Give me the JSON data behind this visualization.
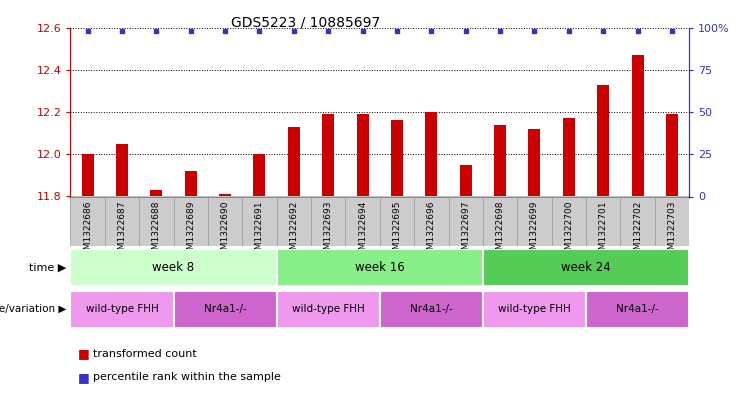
{
  "title": "GDS5223 / 10885697",
  "samples": [
    "GSM1322686",
    "GSM1322687",
    "GSM1322688",
    "GSM1322689",
    "GSM1322690",
    "GSM1322691",
    "GSM1322692",
    "GSM1322693",
    "GSM1322694",
    "GSM1322695",
    "GSM1322696",
    "GSM1322697",
    "GSM1322698",
    "GSM1322699",
    "GSM1322700",
    "GSM1322701",
    "GSM1322702",
    "GSM1322703"
  ],
  "transformed_count": [
    12.0,
    12.05,
    11.83,
    11.92,
    11.81,
    12.0,
    12.13,
    12.19,
    12.19,
    12.16,
    12.2,
    11.95,
    12.14,
    12.12,
    12.17,
    12.33,
    12.47,
    12.19
  ],
  "bar_color": "#cc0000",
  "dot_color": "#3333cc",
  "ylim_left": [
    11.8,
    12.6
  ],
  "ylim_right": [
    0,
    100
  ],
  "yticks_left": [
    11.8,
    12.0,
    12.2,
    12.4,
    12.6
  ],
  "yticks_right": [
    0,
    25,
    50,
    75,
    100
  ],
  "ytick_labels_right": [
    "0",
    "25",
    "50",
    "75",
    "100%"
  ],
  "grid_values": [
    12.0,
    12.2,
    12.4,
    12.6
  ],
  "time_groups": [
    {
      "label": "week 8",
      "start": 0,
      "end": 5,
      "color": "#ccffcc"
    },
    {
      "label": "week 16",
      "start": 6,
      "end": 11,
      "color": "#88ee88"
    },
    {
      "label": "week 24",
      "start": 12,
      "end": 17,
      "color": "#55cc55"
    }
  ],
  "genotype_groups": [
    {
      "label": "wild-type FHH",
      "start": 0,
      "end": 2,
      "color": "#ee99ee"
    },
    {
      "label": "Nr4a1-/-",
      "start": 3,
      "end": 5,
      "color": "#cc66cc"
    },
    {
      "label": "wild-type FHH",
      "start": 6,
      "end": 8,
      "color": "#ee99ee"
    },
    {
      "label": "Nr4a1-/-",
      "start": 9,
      "end": 11,
      "color": "#cc66cc"
    },
    {
      "label": "wild-type FHH",
      "start": 12,
      "end": 14,
      "color": "#ee99ee"
    },
    {
      "label": "Nr4a1-/-",
      "start": 15,
      "end": 17,
      "color": "#cc66cc"
    }
  ],
  "bg_color": "#ffffff",
  "axis_color_left": "#cc0000",
  "axis_color_right": "#3333cc",
  "sample_bg_color": "#cccccc",
  "sample_border_color": "#999999"
}
